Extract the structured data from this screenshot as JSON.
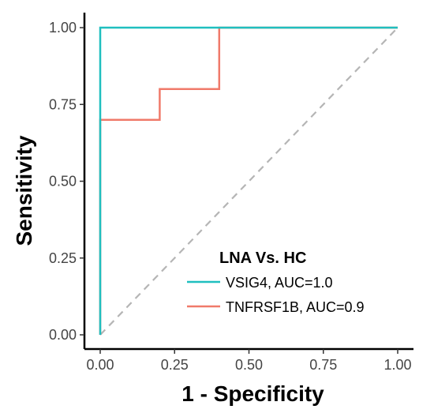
{
  "chart_data": {
    "type": "line",
    "xlabel": "1 - Specificity",
    "ylabel": "Sensitivity",
    "xlim": [
      0,
      1
    ],
    "ylim": [
      0,
      1
    ],
    "x_ticks": [
      "0.00",
      "0.25",
      "0.50",
      "0.75",
      "1.00"
    ],
    "y_ticks": [
      "0.00",
      "0.25",
      "0.50",
      "0.75",
      "1.00"
    ],
    "grid": false,
    "legend": {
      "title": "LNA Vs. HC",
      "position": "bottom-right",
      "entries": [
        "VSIG4, AUC=1.0",
        "TNFRSF1B, AUC=0.9"
      ]
    },
    "series": [
      {
        "name": "VSIG4, AUC=1.0",
        "color": "#1fbfbf",
        "step": true,
        "x": [
          0.0,
          0.0,
          1.0
        ],
        "y": [
          0.0,
          1.0,
          1.0
        ]
      },
      {
        "name": "TNFRSF1B, AUC=0.9",
        "color": "#f07a6a",
        "step": true,
        "x": [
          0.0,
          0.0,
          0.2,
          0.2,
          0.4,
          0.4,
          1.0
        ],
        "y": [
          0.0,
          0.7,
          0.7,
          0.8,
          0.8,
          1.0,
          1.0
        ]
      }
    ],
    "reference_line": {
      "x": [
        0,
        1
      ],
      "y": [
        0,
        1
      ],
      "style": "dashed",
      "color": "#b5b5b5"
    }
  }
}
